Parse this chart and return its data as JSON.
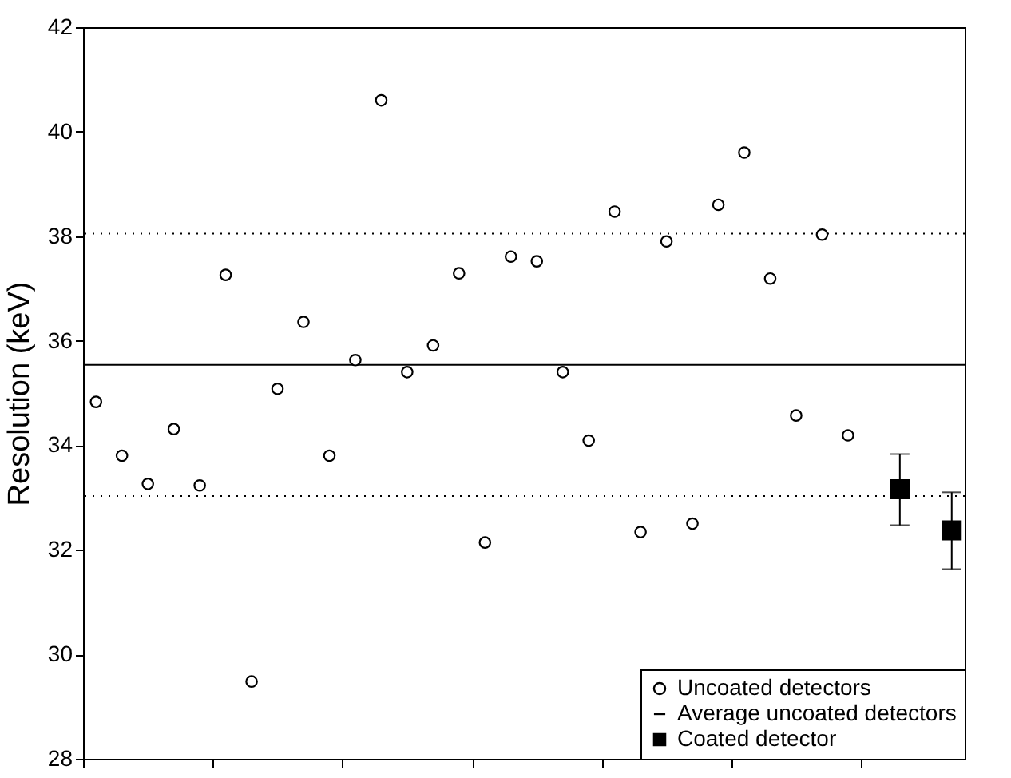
{
  "chart_data": {
    "type": "scatter",
    "ylabel": "Resolution (keV)",
    "categories": [
      null,
      null,
      null,
      null,
      null,
      null,
      null,
      null,
      null,
      null,
      null,
      null,
      null,
      null,
      null,
      null,
      null,
      null,
      null,
      null,
      null,
      null,
      null,
      null,
      null,
      null,
      null,
      null,
      null,
      null,
      null,
      null,
      null,
      null
    ],
    "ylim": [
      28,
      42
    ],
    "yticks": [
      28,
      30,
      32,
      34,
      36,
      38,
      40,
      42
    ],
    "tick_labels": "y",
    "grid": false,
    "legend": "bottom right",
    "series": [
      {
        "name": "Uncoated detectors",
        "color": "#000000",
        "marker": "circle",
        "values": [
          34.83,
          33.8,
          33.26,
          34.31,
          33.23,
          37.26,
          29.48,
          35.08,
          36.36,
          33.8,
          35.63,
          40.6,
          35.4,
          35.91,
          37.29,
          32.14,
          37.61,
          37.52,
          35.4,
          34.09,
          38.47,
          32.34,
          37.9,
          32.5,
          38.6,
          39.6,
          37.19,
          34.57,
          38.03,
          34.19,
          null,
          null,
          null,
          null
        ]
      },
      {
        "name": "Coated detector",
        "color": "#000000",
        "marker": "square",
        "values": [
          null,
          null,
          null,
          null,
          null,
          null,
          null,
          null,
          null,
          null,
          null,
          null,
          null,
          null,
          null,
          null,
          null,
          null,
          null,
          null,
          null,
          null,
          null,
          null,
          null,
          null,
          null,
          null,
          null,
          null,
          null,
          33.16,
          null,
          32.37
        ],
        "errors": [
          null,
          null,
          null,
          null,
          null,
          null,
          null,
          null,
          null,
          null,
          null,
          null,
          null,
          null,
          null,
          null,
          null,
          null,
          null,
          null,
          null,
          null,
          null,
          null,
          null,
          null,
          null,
          null,
          null,
          null,
          null,
          [
            32.47,
            33.83
          ],
          null,
          [
            31.63,
            33.1
          ]
        ]
      }
    ],
    "ref_lines": [
      {
        "axis": "y",
        "value": 35.54,
        "label": "Average uncoated detectors",
        "color": "#000000",
        "line_style": "solid"
      },
      {
        "axis": "y",
        "value": 38.05,
        "label": null,
        "color": "#000000",
        "line_style": "dotted"
      },
      {
        "axis": "y",
        "value": 33.03,
        "label": null,
        "color": "#000000",
        "line_style": "dotted"
      }
    ]
  }
}
